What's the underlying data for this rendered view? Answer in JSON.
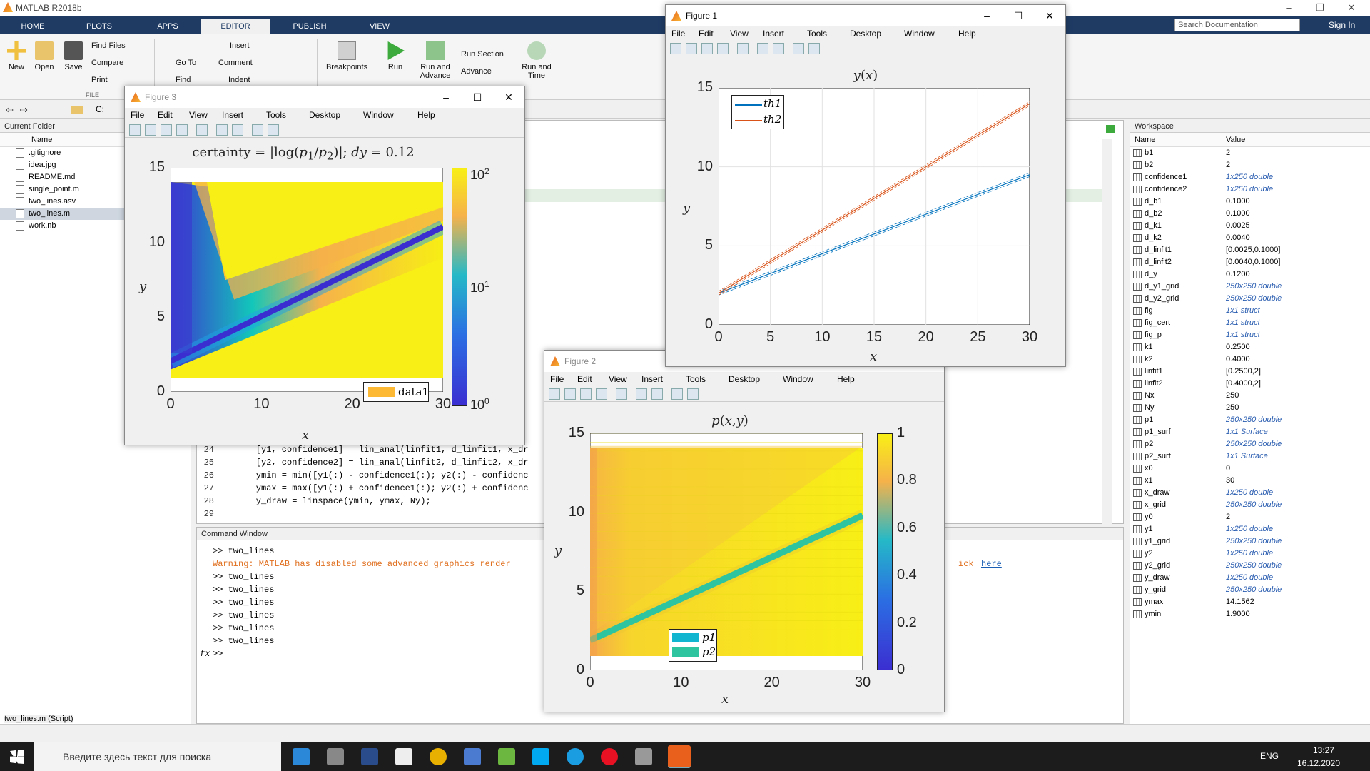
{
  "window": {
    "title": "MATLAB R2018b"
  },
  "ribbon_tabs": [
    "HOME",
    "PLOTS",
    "APPS",
    "EDITOR",
    "PUBLISH",
    "VIEW"
  ],
  "ribbon": {
    "new": "New",
    "open": "Open",
    "save": "Save",
    "find_files": "Find Files",
    "compare": "Compare",
    "print": "Print",
    "go_to": "Go To",
    "find": "Find",
    "insert": "Insert",
    "comment": "Comment",
    "indent": "Indent",
    "breakpoints": "Breakpoints",
    "run": "Run",
    "run_and_advance": "Run and Advance",
    "run_section": "Run Section",
    "advance": "Advance",
    "run_and_time": "Run and Time",
    "file_group": "FILE"
  },
  "search_doc": {
    "placeholder": "Search Documentation"
  },
  "sign_in": "Sign In",
  "address": {
    "path": "C:"
  },
  "current_folder": {
    "title": "Current Folder",
    "name_col": "Name",
    "files": [
      ".gitignore",
      "idea.jpg",
      "README.md",
      "single_point.m",
      "two_lines.asv",
      "two_lines.m",
      "work.nb"
    ],
    "selected": "two_lines.m"
  },
  "editor": {
    "lines": [
      {
        "n": "24",
        "code": "    [y1, confidence1] = lin_anal(linfit1, d_linfit1, x_dr"
      },
      {
        "n": "25",
        "code": "    [y2, confidence2] = lin_anal(linfit2, d_linfit2, x_dr"
      },
      {
        "n": "26",
        "code": "    ymin = min([y1(:) - confidence1(:); y2(:) - confidenc"
      },
      {
        "n": "27",
        "code": "    ymax = max([y1(:) + confidence1(:); y2(:) + confidenc"
      },
      {
        "n": "28",
        "code": "    y_draw = linspace(ymin, ymax, Ny);"
      },
      {
        "n": "29",
        "code": ""
      }
    ]
  },
  "command_window": {
    "title": "Command Window",
    "lines": [
      ">> two_lines",
      ">> two_lines",
      ">> two_lines",
      ">> two_lines",
      ">> two_lines",
      ">> two_lines",
      ">> two_lines"
    ],
    "warning": "Warning: MATLAB has disabled some advanced graphics render",
    "warning_tail": "ick ",
    "warning_link": "here",
    "prompt": ">>"
  },
  "workspace": {
    "title": "Workspace",
    "name_col": "Name",
    "value_col": "Value",
    "vars": [
      [
        "b1",
        "2",
        false
      ],
      [
        "b2",
        "2",
        false
      ],
      [
        "confidence1",
        "1x250 double",
        true
      ],
      [
        "confidence2",
        "1x250 double",
        true
      ],
      [
        "d_b1",
        "0.1000",
        false
      ],
      [
        "d_b2",
        "0.1000",
        false
      ],
      [
        "d_k1",
        "0.0025",
        false
      ],
      [
        "d_k2",
        "0.0040",
        false
      ],
      [
        "d_linfit1",
        "[0.0025,0.1000]",
        false
      ],
      [
        "d_linfit2",
        "[0.0040,0.1000]",
        false
      ],
      [
        "d_y",
        "0.1200",
        false
      ],
      [
        "d_y1_grid",
        "250x250 double",
        true
      ],
      [
        "d_y2_grid",
        "250x250 double",
        true
      ],
      [
        "fig",
        "1x1 struct",
        true
      ],
      [
        "fig_cert",
        "1x1 struct",
        true
      ],
      [
        "fig_p",
        "1x1 struct",
        true
      ],
      [
        "k1",
        "0.2500",
        false
      ],
      [
        "k2",
        "0.4000",
        false
      ],
      [
        "linfit1",
        "[0.2500,2]",
        false
      ],
      [
        "linfit2",
        "[0.4000,2]",
        false
      ],
      [
        "Nx",
        "250",
        false
      ],
      [
        "Ny",
        "250",
        false
      ],
      [
        "p1",
        "250x250 double",
        true
      ],
      [
        "p1_surf",
        "1x1 Surface",
        true
      ],
      [
        "p2",
        "250x250 double",
        true
      ],
      [
        "p2_surf",
        "1x1 Surface",
        true
      ],
      [
        "x0",
        "0",
        false
      ],
      [
        "x1",
        "30",
        false
      ],
      [
        "x_draw",
        "1x250 double",
        true
      ],
      [
        "x_grid",
        "250x250 double",
        true
      ],
      [
        "y0",
        "2",
        false
      ],
      [
        "y1",
        "1x250 double",
        true
      ],
      [
        "y1_grid",
        "250x250 double",
        true
      ],
      [
        "y2",
        "1x250 double",
        true
      ],
      [
        "y2_grid",
        "250x250 double",
        true
      ],
      [
        "y_draw",
        "1x250 double",
        true
      ],
      [
        "y_grid",
        "250x250 double",
        true
      ],
      [
        "ymax",
        "14.1562",
        false
      ],
      [
        "ymin",
        "1.9000",
        false
      ]
    ]
  },
  "status": {
    "file": "two_lines.m  (Script)"
  },
  "taskbar": {
    "search": "Введите здесь текст для поиска",
    "lang": "ENG",
    "time": "13:27",
    "date": "16.12.2020"
  },
  "fig_menu": [
    "File",
    "Edit",
    "View",
    "Insert",
    "Tools",
    "Desktop",
    "Window",
    "Help"
  ],
  "figure1": {
    "title": "Figure 1"
  },
  "figure2": {
    "title": "Figure 2"
  },
  "figure3": {
    "title": "Figure 3"
  },
  "colors": {
    "th1": "#0072bd",
    "th2": "#d95319",
    "data1": "#fdb933"
  },
  "chart_data": [
    {
      "type": "line",
      "figure": "Figure 1",
      "title": "y(x)",
      "xlabel": "x",
      "ylabel": "y",
      "xlim": [
        0,
        30
      ],
      "ylim": [
        0,
        15
      ],
      "xticks": [
        "0",
        "5",
        "10",
        "15",
        "20",
        "25",
        "30"
      ],
      "yticks": [
        "0",
        "5",
        "10",
        "15"
      ],
      "grid": true,
      "legend_position": "top-left",
      "series": [
        {
          "name": "th1",
          "x": [
            0,
            30
          ],
          "y": [
            2,
            9.5
          ],
          "band": 0.12
        },
        {
          "name": "th2",
          "x": [
            0,
            30
          ],
          "y": [
            2,
            14
          ],
          "band": 0.12
        }
      ]
    },
    {
      "type": "heatmap",
      "figure": "Figure 2",
      "title": "p(x,y)",
      "xlabel": "x",
      "ylabel": "y",
      "xlim": [
        0,
        30
      ],
      "ylim": [
        0,
        15
      ],
      "xticks": [
        "0",
        "10",
        "20",
        "30"
      ],
      "yticks": [
        "0",
        "5",
        "10",
        "15"
      ],
      "colorbar": {
        "min": 0,
        "max": 1,
        "ticks": [
          "0",
          "0.2",
          "0.4",
          "0.6",
          "0.8",
          "1"
        ]
      },
      "legend": [
        "p1",
        "p2"
      ],
      "legend_position": "bottom"
    },
    {
      "type": "heatmap",
      "figure": "Figure 3",
      "title": "certainty = |log(p1/p2)|; dy = 0.12",
      "xlabel": "x",
      "ylabel": "y",
      "xlim": [
        0,
        30
      ],
      "ylim": [
        0,
        15
      ],
      "xticks": [
        "0",
        "10",
        "20",
        "30"
      ],
      "yticks": [
        "0",
        "5",
        "10",
        "15"
      ],
      "colorbar": {
        "scale": "log",
        "min": 1,
        "max": 100,
        "ticks": [
          "10^0",
          "10^1",
          "10^2"
        ]
      },
      "legend": [
        "data1"
      ],
      "legend_position": "bottom-right"
    }
  ]
}
